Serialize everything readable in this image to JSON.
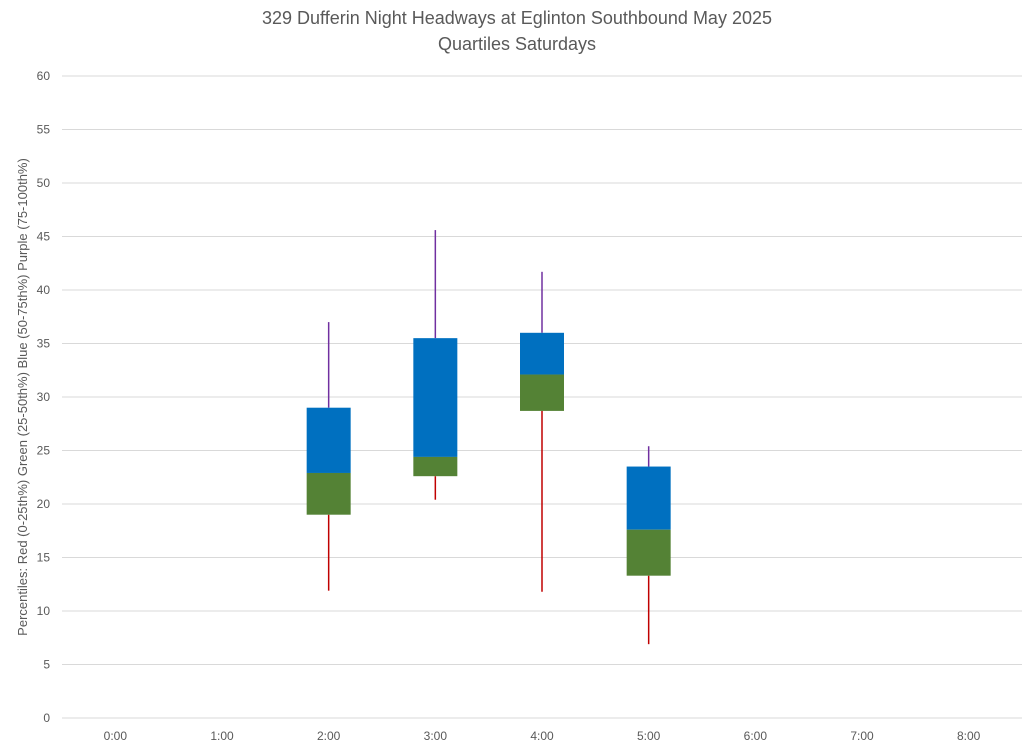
{
  "chart_data": {
    "type": "box",
    "title": "329 Dufferin Night Headways at Eglinton Southbound May 2025",
    "subtitle": "Quartiles Saturdays",
    "xlabel": "",
    "ylabel": "Percentiles:  Red (0-25th%)  Green (25-50th%)  Blue (50-75th%)  Purple (75-100th%)",
    "ylim": [
      0,
      60
    ],
    "yticks": [
      0,
      5,
      10,
      15,
      20,
      25,
      30,
      35,
      40,
      45,
      50,
      55,
      60
    ],
    "categories": [
      "0:00",
      "1:00",
      "2:00",
      "3:00",
      "4:00",
      "5:00",
      "6:00",
      "7:00",
      "8:00"
    ],
    "grid": true,
    "colors": {
      "low": "#c00000",
      "q2": "#548235",
      "q3": "#0070c0",
      "high": "#7030a0",
      "grid": "#d9d9d9",
      "text": "#595959"
    },
    "series": [
      {
        "category": "2:00",
        "min": 11.9,
        "q1": 19.0,
        "median": 22.9,
        "q3": 29.0,
        "max": 37.0
      },
      {
        "category": "3:00",
        "min": 20.4,
        "q1": 22.6,
        "median": 24.4,
        "q3": 35.5,
        "max": 45.6
      },
      {
        "category": "4:00",
        "min": 11.8,
        "q1": 28.7,
        "median": 32.1,
        "q3": 36.0,
        "max": 41.7
      },
      {
        "category": "5:00",
        "min": 6.9,
        "q1": 13.3,
        "median": 17.6,
        "q3": 23.5,
        "max": 25.4
      }
    ]
  }
}
